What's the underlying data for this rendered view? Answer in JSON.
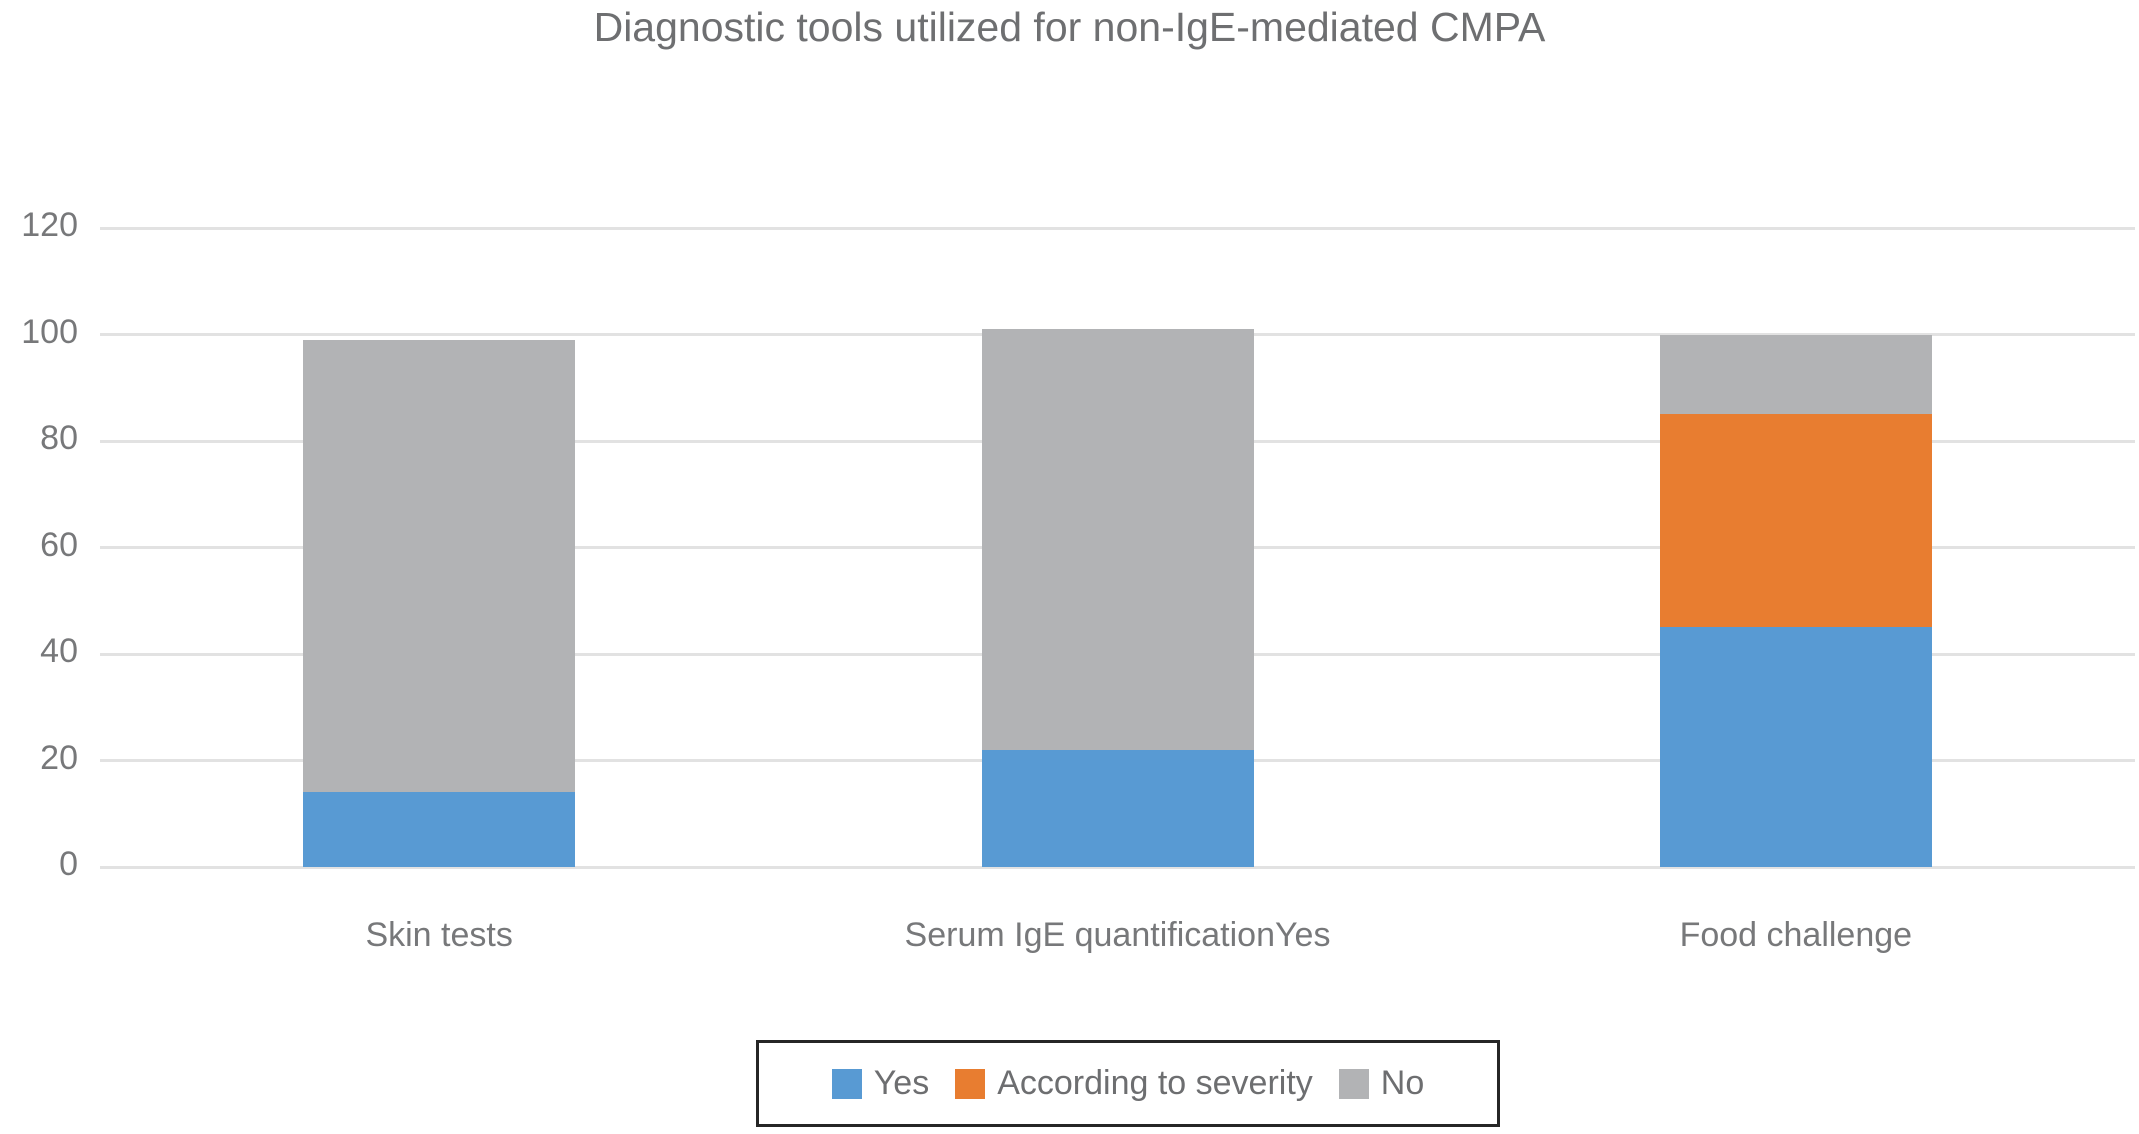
{
  "title": "Diagnostic tools utilized for non-IgE-mediated CMPA",
  "chart_data": {
    "type": "bar",
    "stacked": true,
    "title": "Diagnostic tools utilized for non-IgE-mediated CMPA",
    "xlabel": "",
    "ylabel": "",
    "categories": [
      "Skin tests",
      "Serum IgE quantificationYes",
      "Food challenge"
    ],
    "series": [
      {
        "name": "Yes",
        "values": [
          14,
          22,
          45
        ]
      },
      {
        "name": "According to severity",
        "values": [
          0,
          0,
          40
        ]
      },
      {
        "name": "No",
        "values": [
          85,
          79,
          15
        ]
      }
    ],
    "totals": [
      99,
      101,
      100
    ],
    "ylim": [
      0,
      120
    ],
    "yticks": [
      0,
      20,
      40,
      60,
      80,
      100,
      120
    ],
    "grid": true,
    "legend_position": "bottom"
  },
  "legend": {
    "items": [
      {
        "label": "Yes",
        "color": "#589AD3"
      },
      {
        "label": "According to severity",
        "color": "#E87D30"
      },
      {
        "label": "No",
        "color": "#B2B3B5"
      }
    ]
  },
  "colors": {
    "yes_blue": "#589AD3",
    "severity_orange": "#E87D30",
    "no_gray": "#B2B3B5",
    "gridline": "#E2E2E2",
    "title_text": "#6E6F71",
    "axis_text": "#77787A",
    "legend_text": "#6D6E70",
    "legend_border": "#262626",
    "background": "#FFFFFF"
  }
}
